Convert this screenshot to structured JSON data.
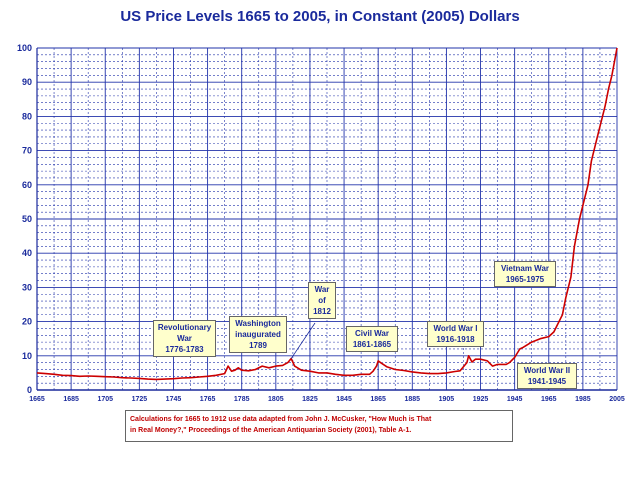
{
  "chart_data": {
    "type": "line",
    "title": "US Price Levels 1665 to 2005, in Constant (2005) Dollars",
    "xlabel": "",
    "ylabel": "",
    "xlim": [
      1665,
      2005
    ],
    "ylim": [
      0,
      100
    ],
    "x_ticks": [
      "1665",
      "1685",
      "1705",
      "1725",
      "1745",
      "1765",
      "1785",
      "1805",
      "1825",
      "1845",
      "1865",
      "1885",
      "1905",
      "1925",
      "1945",
      "1965",
      "1985",
      "2005"
    ],
    "y_ticks": [
      "0",
      "10",
      "20",
      "30",
      "40",
      "50",
      "60",
      "70",
      "80",
      "90",
      "100"
    ],
    "grid": true,
    "line_color": "#cc0000",
    "grid_color": "#2233aa",
    "series": [
      {
        "x": [
          1665,
          1670,
          1675,
          1680,
          1685,
          1690,
          1695,
          1700,
          1705,
          1710,
          1715,
          1720,
          1725,
          1730,
          1735,
          1740,
          1745,
          1750,
          1755,
          1760,
          1765,
          1770,
          1775,
          1777,
          1779,
          1781,
          1783,
          1785,
          1789,
          1793,
          1797,
          1801,
          1805,
          1809,
          1812,
          1814,
          1816,
          1820,
          1825,
          1830,
          1835,
          1840,
          1845,
          1850,
          1855,
          1860,
          1862,
          1864,
          1865,
          1867,
          1870,
          1875,
          1880,
          1885,
          1890,
          1895,
          1900,
          1905,
          1910,
          1913,
          1917,
          1918,
          1920,
          1922,
          1925,
          1929,
          1932,
          1935,
          1940,
          1942,
          1945,
          1948,
          1950,
          1955,
          1960,
          1965,
          1968,
          1970,
          1973,
          1975,
          1978,
          1980,
          1983,
          1985,
          1988,
          1990,
          1993,
          1995,
          1998,
          2000,
          2002,
          2005
        ],
        "y": [
          5.0,
          4.8,
          4.6,
          4.3,
          4.2,
          4.0,
          4.1,
          4.0,
          3.9,
          3.8,
          3.6,
          3.5,
          3.4,
          3.2,
          3.1,
          3.2,
          3.3,
          3.5,
          3.6,
          3.8,
          4.0,
          4.3,
          4.8,
          7.0,
          5.5,
          5.8,
          6.5,
          5.8,
          5.6,
          6.0,
          7.0,
          6.5,
          7.0,
          7.2,
          8.0,
          9.2,
          7.0,
          5.8,
          5.5,
          5.0,
          5.0,
          4.6,
          4.3,
          4.3,
          4.6,
          4.6,
          5.5,
          7.0,
          8.5,
          7.8,
          6.8,
          6.0,
          5.7,
          5.3,
          5.0,
          4.8,
          4.8,
          5.0,
          5.4,
          5.6,
          8.0,
          10.0,
          8.2,
          9.0,
          9.0,
          8.5,
          7.0,
          7.5,
          7.5,
          8.0,
          9.5,
          12.0,
          12.5,
          14.0,
          15.0,
          15.6,
          17.0,
          19.0,
          22.0,
          27.0,
          33.0,
          42.0,
          50.0,
          54.0,
          60.0,
          67.0,
          73.0,
          77.0,
          83.0,
          88.0,
          92.0,
          100.0
        ]
      }
    ]
  },
  "annotations": [
    {
      "lines": [
        "Revolutionary",
        "War",
        "1776-1783"
      ]
    },
    {
      "lines": [
        "Washington",
        "inaugurated",
        "1789"
      ]
    },
    {
      "lines": [
        "War",
        "of",
        "1812"
      ]
    },
    {
      "lines": [
        "Civil War",
        "1861-1865"
      ]
    },
    {
      "lines": [
        "World War I",
        "1916-1918"
      ]
    },
    {
      "lines": [
        "Vietnam War",
        "1965-1975"
      ]
    },
    {
      "lines": [
        "World War II",
        "1941-1945"
      ]
    }
  ],
  "note": {
    "line1": "Calculations for 1665 to 1912 use data adapted from John J. McCusker, \"How Much is That",
    "line2": "in Real Money?,\"  Proceedings of the American Antiquarian Society (2001), Table A-1."
  }
}
